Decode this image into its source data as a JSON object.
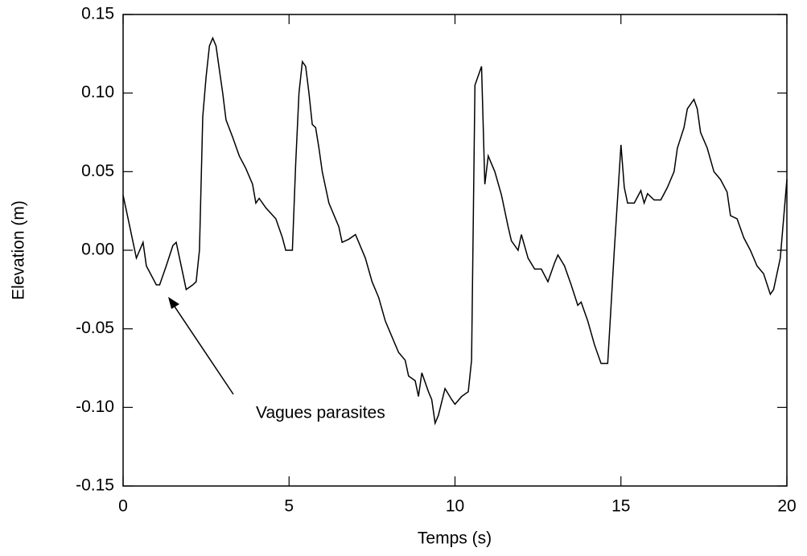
{
  "chart_data": {
    "type": "line",
    "xlabel": "Temps (s)",
    "ylabel": "Elevation (m)",
    "annotation": "Vagues parasites",
    "xlim": [
      0,
      20
    ],
    "xticks": [
      0,
      5,
      10,
      15,
      20
    ],
    "ylim": [
      -0.15,
      0.15
    ],
    "yticks": [
      -0.15,
      {
        "value": -0.1,
        "label": "-0.10"
      },
      -0.05,
      {
        "value": 0,
        "label": "0.00"
      },
      0.05,
      {
        "value": 0.1,
        "label": "0.10"
      },
      0.15
    ],
    "series": [
      {
        "color": "#000000",
        "x": [
          0,
          0.2,
          0.4,
          0.6,
          0.7,
          1.0,
          1.1,
          1.3,
          1.5,
          1.6,
          1.8,
          1.9,
          2.1,
          2.2,
          2.3,
          2.4,
          2.5,
          2.6,
          2.7,
          2.8,
          2.9,
          3.0,
          3.1,
          3.3,
          3.5,
          3.7,
          3.9,
          4.0,
          4.1,
          4.3,
          4.6,
          4.8,
          4.9,
          5.1,
          5.2,
          5.3,
          5.4,
          5.5,
          5.6,
          5.7,
          5.8,
          5.9,
          6.0,
          6.2,
          6.4,
          6.5,
          6.6,
          6.8,
          7.0,
          7.1,
          7.3,
          7.5,
          7.7,
          7.9,
          8.1,
          8.3,
          8.5,
          8.6,
          8.8,
          8.9,
          9.0,
          9.2,
          9.3,
          9.4,
          9.5,
          9.7,
          9.9,
          10.0,
          10.2,
          10.4,
          10.5,
          10.6,
          10.8,
          10.9,
          11.0,
          11.2,
          11.4,
          11.6,
          11.7,
          11.9,
          12.0,
          12.2,
          12.4,
          12.6,
          12.8,
          13.0,
          13.1,
          13.3,
          13.5,
          13.7,
          13.8,
          14.0,
          14.2,
          14.4,
          14.6,
          14.8,
          15.0,
          15.1,
          15.2,
          15.4,
          15.6,
          15.7,
          15.8,
          16.0,
          16.2,
          16.4,
          16.6,
          16.7,
          16.9,
          17.0,
          17.2,
          17.3,
          17.4,
          17.6,
          17.8,
          18.0,
          18.2,
          18.3,
          18.5,
          18.7,
          18.9,
          19.1,
          19.3,
          19.5,
          19.6,
          19.8,
          20.0
        ],
        "values": [
          0.035,
          0.015,
          -0.005,
          0.005,
          -0.01,
          -0.022,
          -0.022,
          -0.01,
          0.003,
          0.005,
          -0.015,
          -0.025,
          -0.022,
          -0.02,
          0.0,
          0.085,
          0.11,
          0.13,
          0.135,
          0.13,
          0.115,
          0.1,
          0.083,
          0.072,
          0.06,
          0.052,
          0.042,
          0.03,
          0.033,
          0.027,
          0.02,
          0.008,
          0.0,
          0.0,
          0.055,
          0.1,
          0.12,
          0.117,
          0.1,
          0.08,
          0.078,
          0.065,
          0.05,
          0.03,
          0.02,
          0.015,
          0.005,
          0.007,
          0.01,
          0.005,
          -0.005,
          -0.02,
          -0.03,
          -0.045,
          -0.055,
          -0.065,
          -0.07,
          -0.08,
          -0.083,
          -0.093,
          -0.078,
          -0.09,
          -0.095,
          -0.11,
          -0.105,
          -0.088,
          -0.095,
          -0.098,
          -0.093,
          -0.09,
          -0.07,
          0.105,
          0.117,
          0.042,
          0.06,
          0.05,
          0.035,
          0.015,
          0.006,
          0.0,
          0.01,
          -0.005,
          -0.012,
          -0.012,
          -0.02,
          -0.008,
          -0.003,
          -0.01,
          -0.022,
          -0.035,
          -0.033,
          -0.045,
          -0.06,
          -0.072,
          -0.072,
          0.0,
          0.067,
          0.04,
          0.03,
          0.03,
          0.038,
          0.03,
          0.036,
          0.032,
          0.032,
          0.04,
          0.05,
          0.065,
          0.078,
          0.09,
          0.096,
          0.09,
          0.075,
          0.065,
          0.05,
          0.045,
          0.037,
          0.022,
          0.02,
          0.008,
          0.0,
          -0.01,
          -0.015,
          -0.028,
          -0.025,
          -0.005,
          0.045
        ]
      }
    ]
  }
}
